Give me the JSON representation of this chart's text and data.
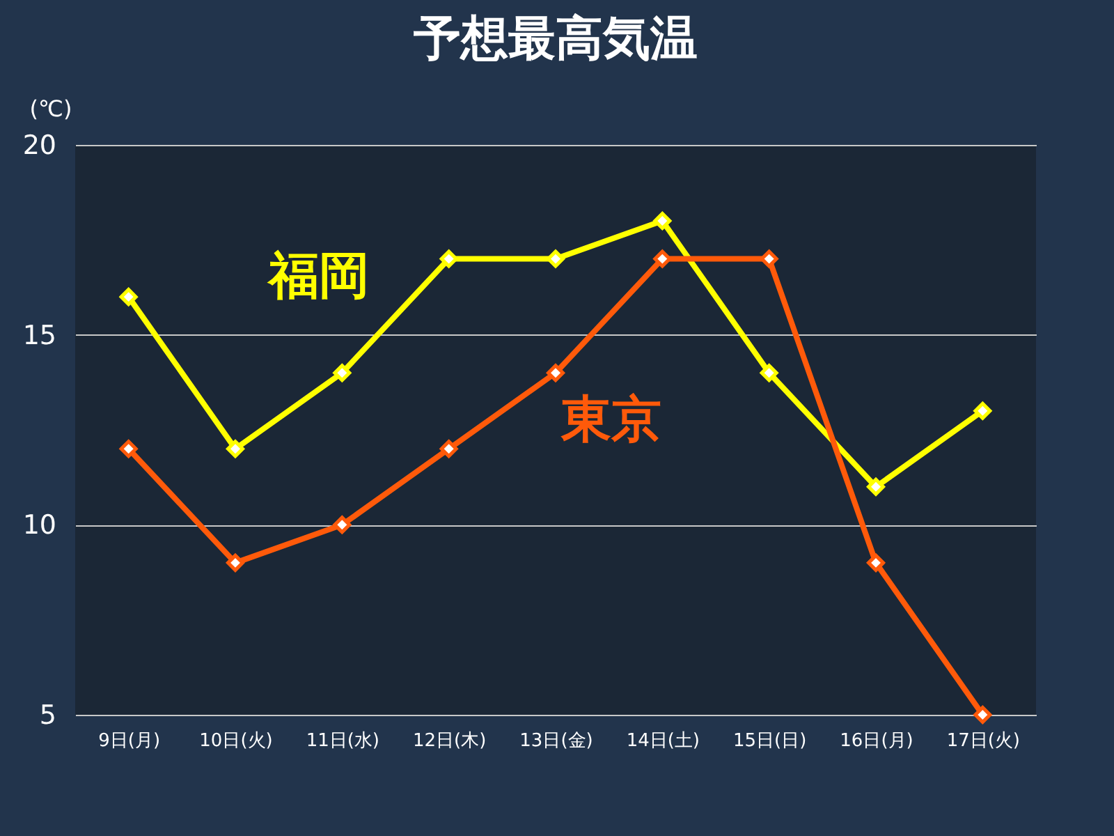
{
  "chart_data": {
    "type": "line",
    "title": "予想最高気温",
    "ylabel": "(℃)",
    "categories": [
      "9日(月)",
      "10日(火)",
      "11日(水)",
      "12日(木)",
      "13日(金)",
      "14日(土)",
      "15日(日)",
      "16日(月)",
      "17日(火)"
    ],
    "series": [
      {
        "name": "福岡",
        "color": "#ffff00",
        "values": [
          16,
          12,
          14,
          17,
          17,
          18,
          14,
          11,
          13
        ]
      },
      {
        "name": "東京",
        "color": "#ff5a0a",
        "values": [
          12,
          9,
          10,
          12,
          14,
          17,
          17,
          9,
          5
        ]
      }
    ],
    "ylim": [
      5,
      20
    ],
    "yticks": [
      5,
      10,
      15,
      20
    ],
    "grid": "y",
    "marker": "diamond",
    "line_style": "solid"
  }
}
